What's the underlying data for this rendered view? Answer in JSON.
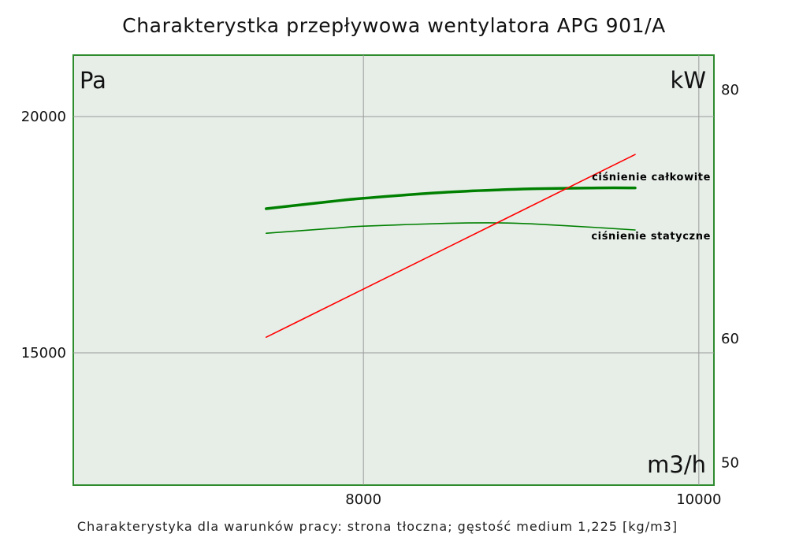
{
  "title": "Charakterystka przepływowa wentylatora APG 901/A",
  "footer": "Charakterystyka dla warunków pracy: strona tłoczna; gęstość medium 1,225 [kg/m3]",
  "colors": {
    "plot_background": "#e7eee8",
    "plot_border": "#2e8b2e",
    "grid": "#9a9a9a",
    "total_pressure": "#008000",
    "static_pressure": "#008000",
    "power": "#ff0000"
  },
  "chart_data": {
    "type": "line",
    "title": "Charakterystka przepływowa wentylatora APG 901/A",
    "xlabel": "m3/h",
    "ylabel_left": "Pa",
    "ylabel_right": "kW",
    "xlim": [
      6270,
      10090
    ],
    "ylim_left": [
      12200,
      21300
    ],
    "ylim_right": [
      48.2,
      82.8
    ],
    "x_ticks": [
      "8000",
      "10000"
    ],
    "x_tick_values": [
      8000,
      10000
    ],
    "y_left_ticks": [
      "20000",
      "15000"
    ],
    "y_left_tick_values": [
      20000,
      15000
    ],
    "y_right_ticks": [
      "80",
      "60",
      "50"
    ],
    "y_right_tick_values": [
      80,
      60,
      50
    ],
    "grid": true,
    "series": [
      {
        "name": "ciśnienie całkowite",
        "axis": "left",
        "x": [
          7420,
          7800,
          8000,
          8500,
          9000,
          9400,
          9620
        ],
        "y": [
          18050,
          18200,
          18270,
          18400,
          18470,
          18490,
          18490
        ]
      },
      {
        "name": "ciśnienie statyczne",
        "axis": "left",
        "x": [
          7420,
          7800,
          8000,
          8500,
          8800,
          9000,
          9400,
          9620
        ],
        "y": [
          17530,
          17630,
          17680,
          17740,
          17750,
          17730,
          17650,
          17600
        ]
      },
      {
        "axis": "right",
        "x": [
          7420,
          9620
        ],
        "y": [
          60.1,
          74.8
        ]
      }
    ]
  }
}
